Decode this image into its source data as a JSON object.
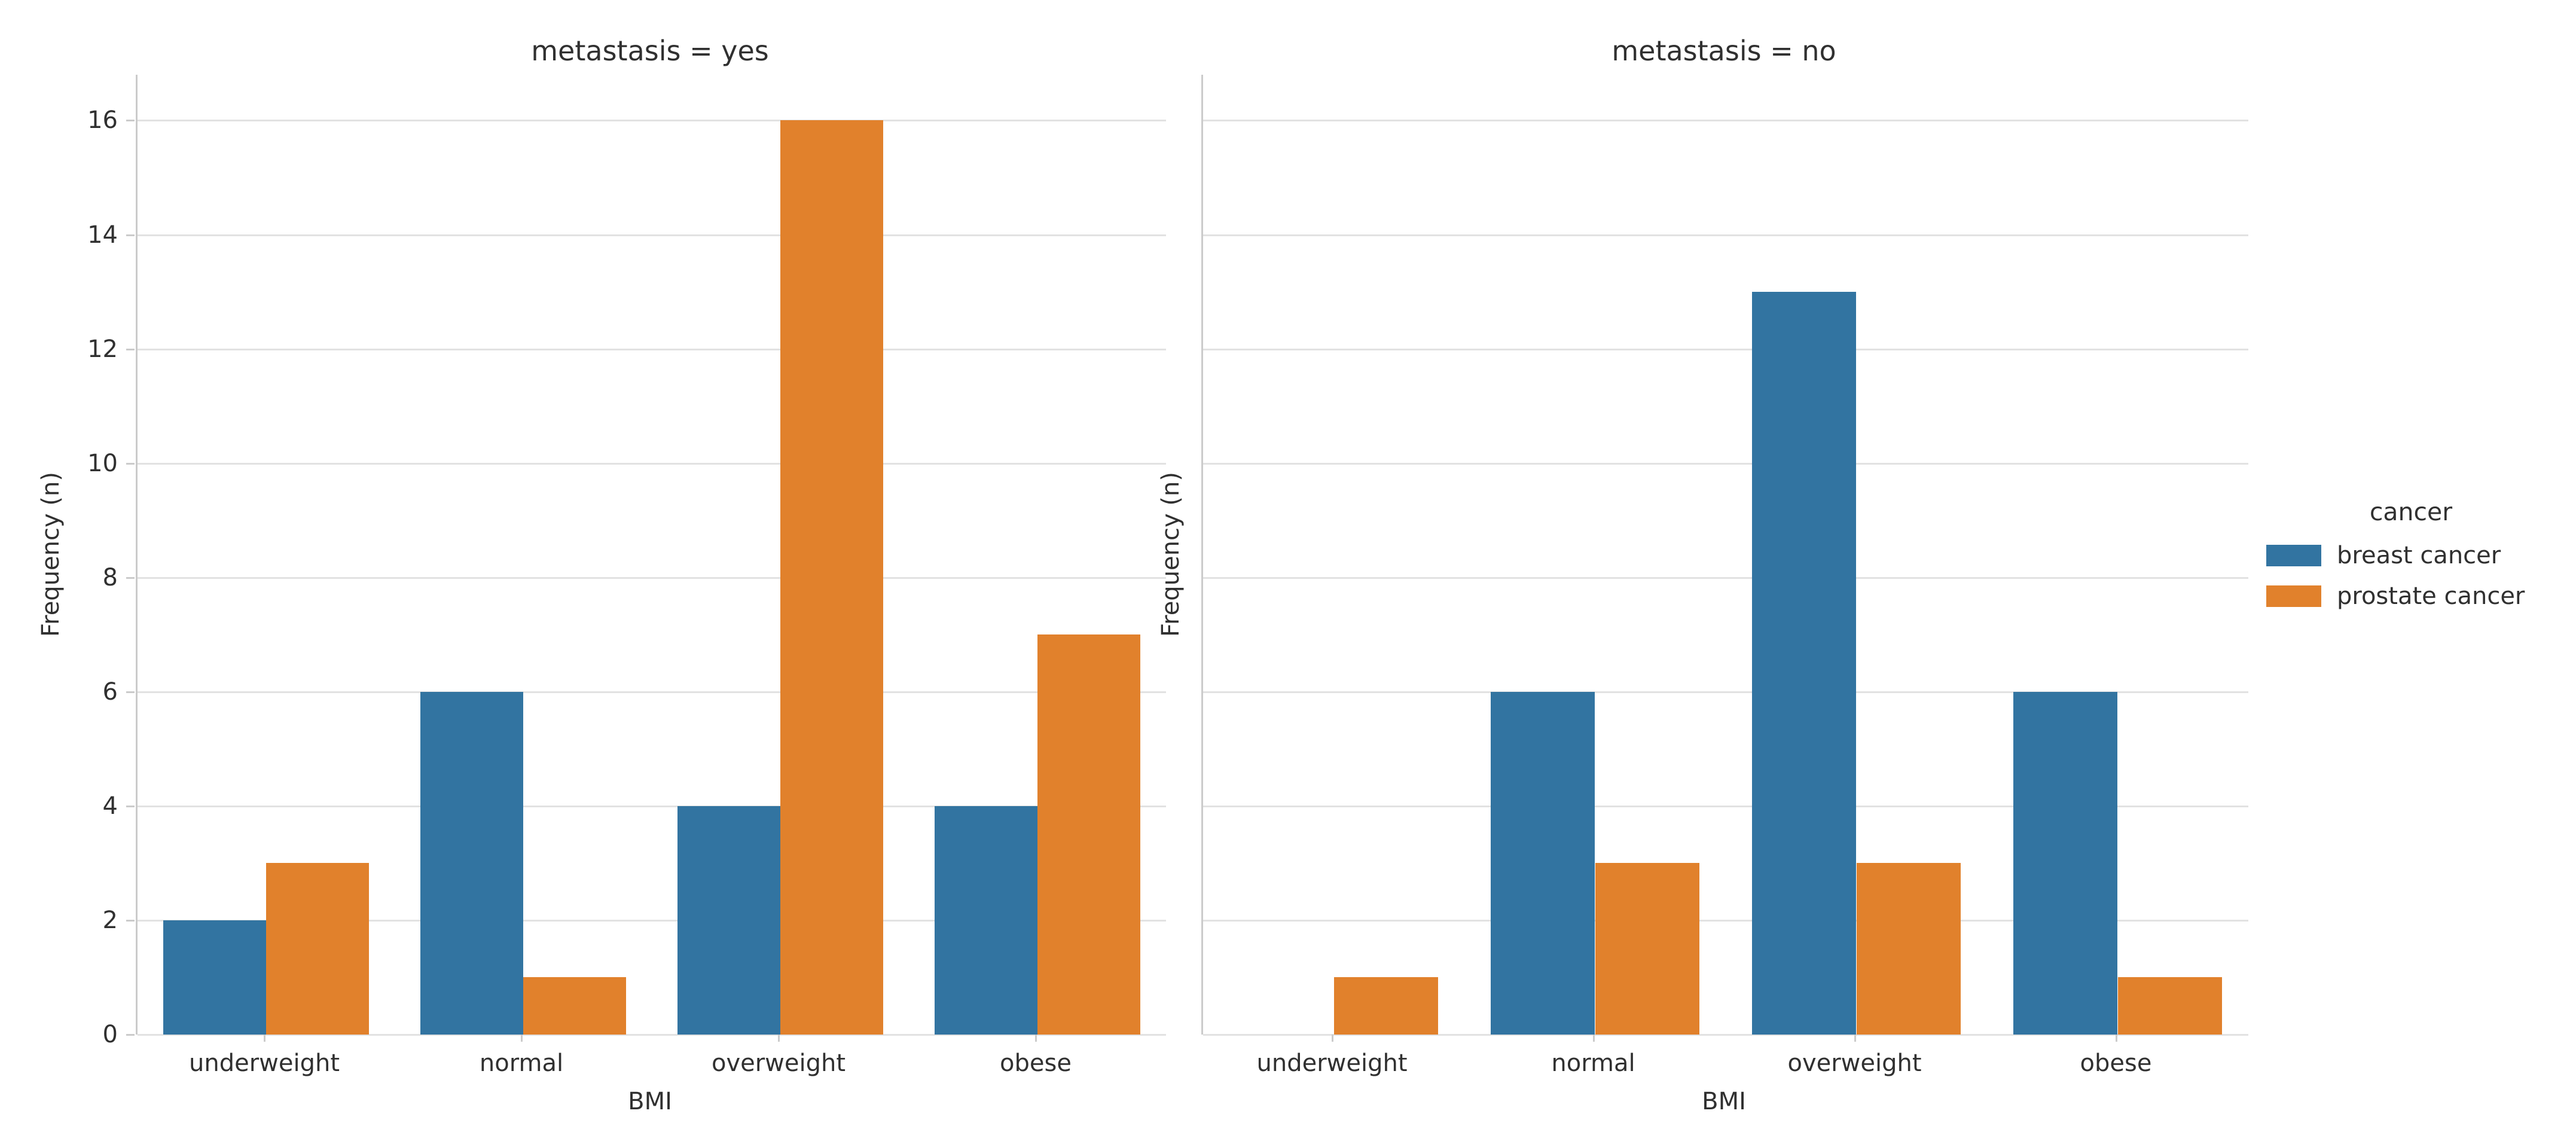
{
  "figure": {
    "background": "#ffffff",
    "text_color": "#303030",
    "grid_color": "#e2e2e2",
    "spine_color": "#cbcbcb"
  },
  "axis": {
    "ylabel": "Frequency (n)",
    "xlabel": "BMI",
    "yticks": [
      0,
      2,
      4,
      6,
      8,
      10,
      12,
      14,
      16
    ],
    "ylim": [
      0,
      16.8
    ],
    "categories": [
      "underweight",
      "normal",
      "overweight",
      "obese"
    ]
  },
  "legend": {
    "title": "cancer",
    "entries": [
      {
        "label": "breast cancer",
        "color": "#3274a1"
      },
      {
        "label": "prostate cancer",
        "color": "#e1812c"
      }
    ]
  },
  "chart_data": [
    {
      "type": "bar",
      "title": "metastasis = yes",
      "facet": "metastasis = yes",
      "categories": [
        "underweight",
        "normal",
        "overweight",
        "obese"
      ],
      "series": [
        {
          "name": "breast cancer",
          "color": "#3274a1",
          "values": [
            2,
            6,
            4,
            4
          ]
        },
        {
          "name": "prostate cancer",
          "color": "#e1812c",
          "values": [
            3,
            1,
            16,
            7
          ]
        }
      ],
      "xlabel": "BMI",
      "ylabel": "Frequency (n)",
      "ylim": [
        0,
        16.8
      ],
      "yticks": [
        0,
        2,
        4,
        6,
        8,
        10,
        12,
        14,
        16
      ],
      "grid": true,
      "legend_position": "right"
    },
    {
      "type": "bar",
      "title": "metastasis = no",
      "facet": "metastasis = no",
      "categories": [
        "underweight",
        "normal",
        "overweight",
        "obese"
      ],
      "series": [
        {
          "name": "breast cancer",
          "color": "#3274a1",
          "values": [
            0,
            6,
            13,
            6
          ]
        },
        {
          "name": "prostate cancer",
          "color": "#e1812c",
          "values": [
            1,
            3,
            3,
            1
          ]
        }
      ],
      "xlabel": "BMI",
      "ylabel": "Frequency (n)",
      "ylim": [
        0,
        16.8
      ],
      "yticks": [
        0,
        2,
        4,
        6,
        8,
        10,
        12,
        14,
        16
      ],
      "grid": true,
      "legend_position": "right"
    }
  ]
}
